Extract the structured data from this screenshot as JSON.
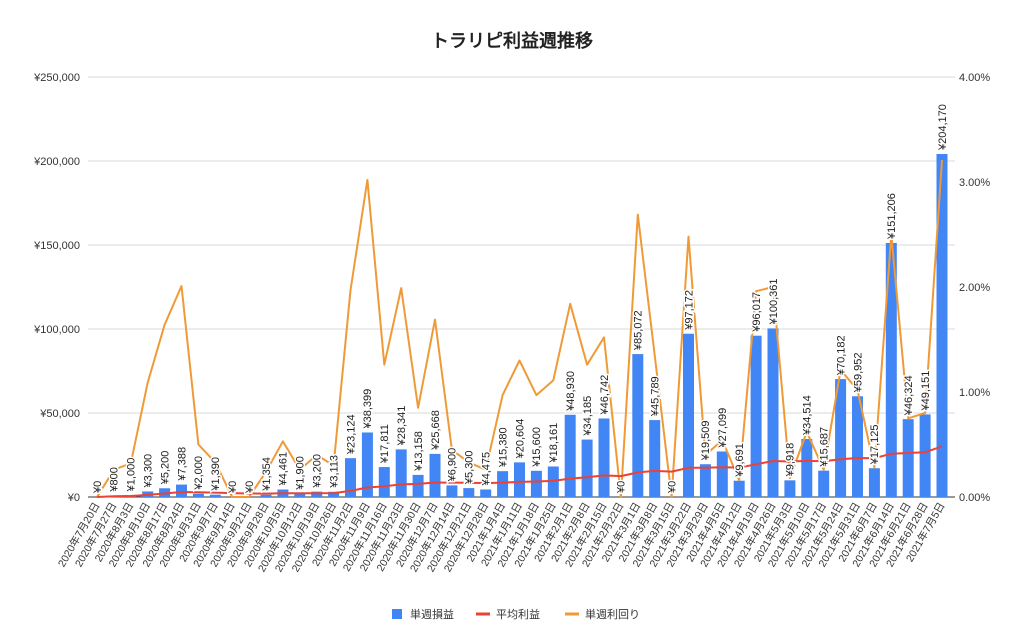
{
  "chart_data": {
    "type": "bar+line",
    "title": "トラリピ利益週推移",
    "categories": [
      "2020年7月20日",
      "2020年7月27日",
      "2020年8月3日",
      "2020年8月10日",
      "2020年8月17日",
      "2020年8月24日",
      "2020年8月31日",
      "2020年9月7日",
      "2020年9月14日",
      "2020年9月21日",
      "2020年9月28日",
      "2020年10月5日",
      "2020年10月12日",
      "2020年10月19日",
      "2020年10月26日",
      "2020年11月2日",
      "2020年11月9日",
      "2020年11月16日",
      "2020年11月23日",
      "2020年11月30日",
      "2020年12月7日",
      "2020年12月14日",
      "2020年12月21日",
      "2020年12月28日",
      "2021年1月4日",
      "2021年1月11日",
      "2021年1月18日",
      "2021年1月25日",
      "2021年2月1日",
      "2021年2月8日",
      "2021年2月15日",
      "2021年2月22日",
      "2021年3月1日",
      "2021年3月8日",
      "2021年3月15日",
      "2021年3月22日",
      "2021年3月29日",
      "2021年4月5日",
      "2021年4月12日",
      "2021年4月19日",
      "2021年4月26日",
      "2021年5月3日",
      "2021年5月10日",
      "2021年5月17日",
      "2021年5月24日",
      "2021年5月31日",
      "2021年6月7日",
      "2021年6月14日",
      "2021年6月21日",
      "2021年6月28日",
      "2021年7月5日"
    ],
    "series": [
      {
        "name": "単週損益",
        "type": "bar",
        "axis": "left",
        "color": "#4285f4",
        "values": [
          0,
          800,
          1000,
          3300,
          5200,
          7388,
          2000,
          1390,
          0,
          0,
          1354,
          4461,
          1900,
          3200,
          3113,
          23124,
          38399,
          17811,
          28341,
          13158,
          25668,
          6900,
          5300,
          4475,
          15380,
          20604,
          15600,
          18161,
          48930,
          34185,
          46742,
          0,
          85072,
          45789,
          0,
          97172,
          19509,
          27099,
          9691,
          96017,
          100361,
          9918,
          34514,
          15687,
          70182,
          59952,
          17125,
          151206,
          46324,
          49151,
          204170
        ]
      },
      {
        "name": "平均利益",
        "type": "line",
        "axis": "left",
        "color": "#ea4335",
        "values": [
          0,
          400,
          600,
          1275,
          2060,
          2948,
          2812,
          2634,
          2341,
          2107,
          2039,
          2241,
          2215,
          2286,
          2340,
          3639,
          5684,
          6358,
          7515,
          7797,
          8648,
          8568,
          8426,
          8262,
          8546,
          9010,
          9254,
          9572,
          10930,
          11705,
          12835,
          12434,
          14635,
          15551,
          15107,
          17387,
          17444,
          17698,
          17493,
          19456,
          21429,
          21155,
          21466,
          21334,
          22420,
          23236,
          23106,
          25774,
          26194,
          26653,
          30134
        ]
      },
      {
        "name": "単週利回り",
        "type": "line",
        "axis": "right",
        "color": "#f09a37",
        "values": [
          0,
          0.26,
          0.32,
          1.09,
          1.64,
          2.01,
          0.5,
          0.33,
          0,
          0,
          0.24,
          0.53,
          0.26,
          0.4,
          0.3,
          1.97,
          3.02,
          1.26,
          1.99,
          0.85,
          1.69,
          0.45,
          0.33,
          0.26,
          0.97,
          1.3,
          0.97,
          1.11,
          1.84,
          1.26,
          1.52,
          0,
          2.69,
          1.35,
          0,
          2.48,
          0.4,
          0.54,
          0.16,
          1.96,
          2.0,
          0.18,
          0.62,
          0.26,
          1.21,
          1.02,
          0.28,
          2.5,
          0.75,
          0.8,
          3.21
        ]
      }
    ],
    "left_axis": {
      "range": [
        0,
        250000
      ],
      "ticks": [
        "¥0",
        "¥50,000",
        "¥100,000",
        "¥150,000",
        "¥200,000",
        "¥250,000"
      ]
    },
    "right_axis": {
      "range": [
        0,
        4
      ],
      "ticks": [
        "0.00%",
        "1.00%",
        "2.00%",
        "3.00%",
        "4.00%"
      ]
    },
    "grid": true,
    "legend": "bottom",
    "data_labels": true
  }
}
